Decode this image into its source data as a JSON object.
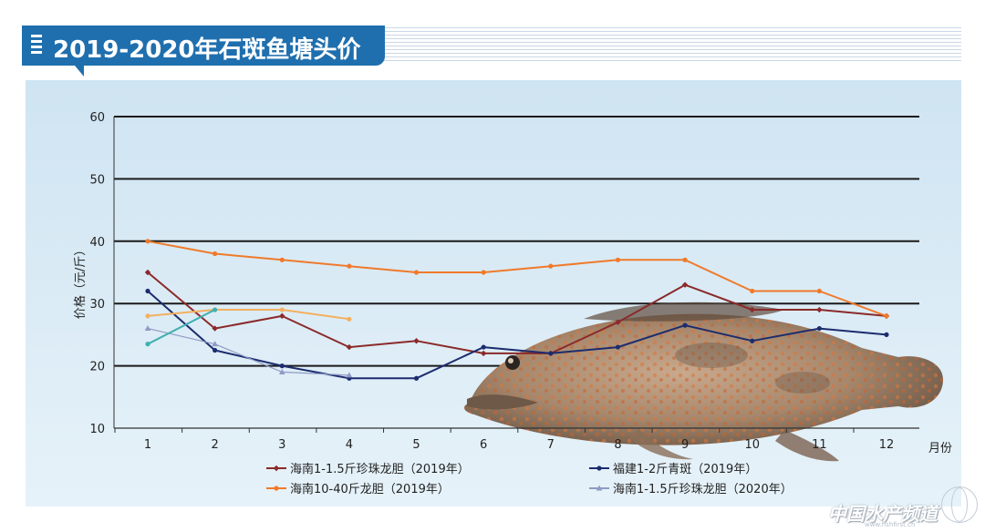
{
  "header": {
    "title": "2019-2020年石斑鱼塘头价"
  },
  "chart_data": {
    "type": "line",
    "ylabel": "价格（元/斤）",
    "xlabel": "月份",
    "x": [
      1,
      2,
      3,
      4,
      5,
      6,
      7,
      8,
      9,
      10,
      11,
      12
    ],
    "ylim": [
      10,
      60
    ],
    "yticks": [
      10,
      20,
      30,
      40,
      50,
      60
    ],
    "grid": true,
    "legend_position": "bottom",
    "series": [
      {
        "name": "海南1-1.5斤珍珠龙胆（2019年）",
        "color": "#8b2a2a",
        "marker": "diamond",
        "values": [
          35,
          26,
          28,
          23,
          24,
          22,
          22,
          27,
          33,
          29,
          29,
          28
        ]
      },
      {
        "name": "福建1-2斤青斑（2019年）",
        "color": "#1c2c6e",
        "marker": "circle",
        "values": [
          32,
          22.5,
          20,
          18,
          18,
          23,
          22,
          23,
          26.5,
          24,
          26,
          25
        ]
      },
      {
        "name": "海南10-40斤龙胆（2019年）",
        "color": "#f07a2a",
        "marker": "circle",
        "values": [
          40,
          38,
          37,
          36,
          35,
          35,
          36,
          37,
          37,
          32,
          32,
          28
        ]
      },
      {
        "name": "海南1-1.5斤珍珠龙胆（2020年）",
        "color": "#8f9bc4",
        "marker": "triangle",
        "values": [
          26,
          23.5,
          19,
          18.5,
          null,
          null,
          null,
          null,
          null,
          null,
          null,
          null
        ]
      },
      {
        "name": "",
        "color": "#f3b060",
        "marker": "circle",
        "values": [
          28,
          29,
          29,
          27.5,
          null,
          null,
          null,
          null,
          null,
          null,
          null,
          null
        ]
      },
      {
        "name": "",
        "color": "#3fb0b0",
        "marker": "circle",
        "values": [
          23.5,
          29,
          null,
          null,
          null,
          null,
          null,
          null,
          null,
          null,
          null,
          null
        ]
      }
    ]
  },
  "watermark": {
    "text": "中国水产频道",
    "sub": "www.fishfirst.cn"
  }
}
